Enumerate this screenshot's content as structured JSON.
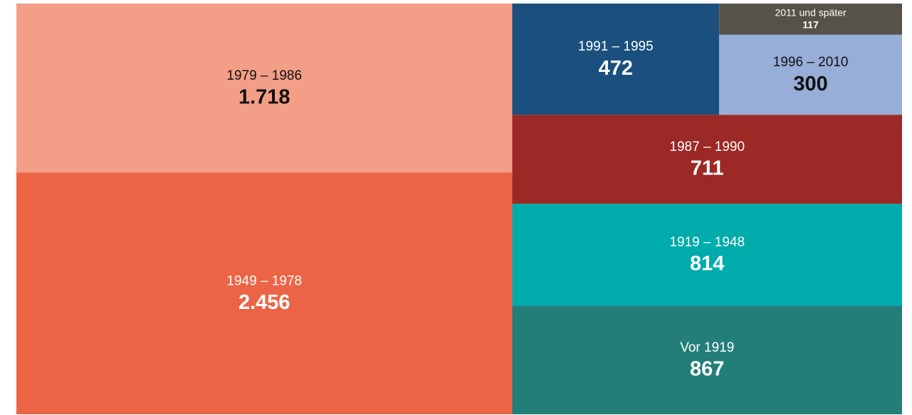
{
  "chart_data": {
    "type": "treemap",
    "categories": [
      "1979 – 1986",
      "1949 – 1978",
      "1991 – 1995",
      "2011 und später",
      "1996 – 2010",
      "1987 – 1990",
      "1919 – 1948",
      "Vor 1919"
    ],
    "values": [
      1718,
      2456,
      472,
      117,
      300,
      711,
      814,
      867
    ],
    "value_labels": [
      "1.718",
      "2.456",
      "472",
      "117",
      "300",
      "711",
      "814",
      "867"
    ],
    "colors": [
      "#f39e87",
      "#ec6446",
      "#1a4f7e",
      "#575249",
      "#97aed8",
      "#9c2926",
      "#00abab",
      "#237e79"
    ]
  }
}
